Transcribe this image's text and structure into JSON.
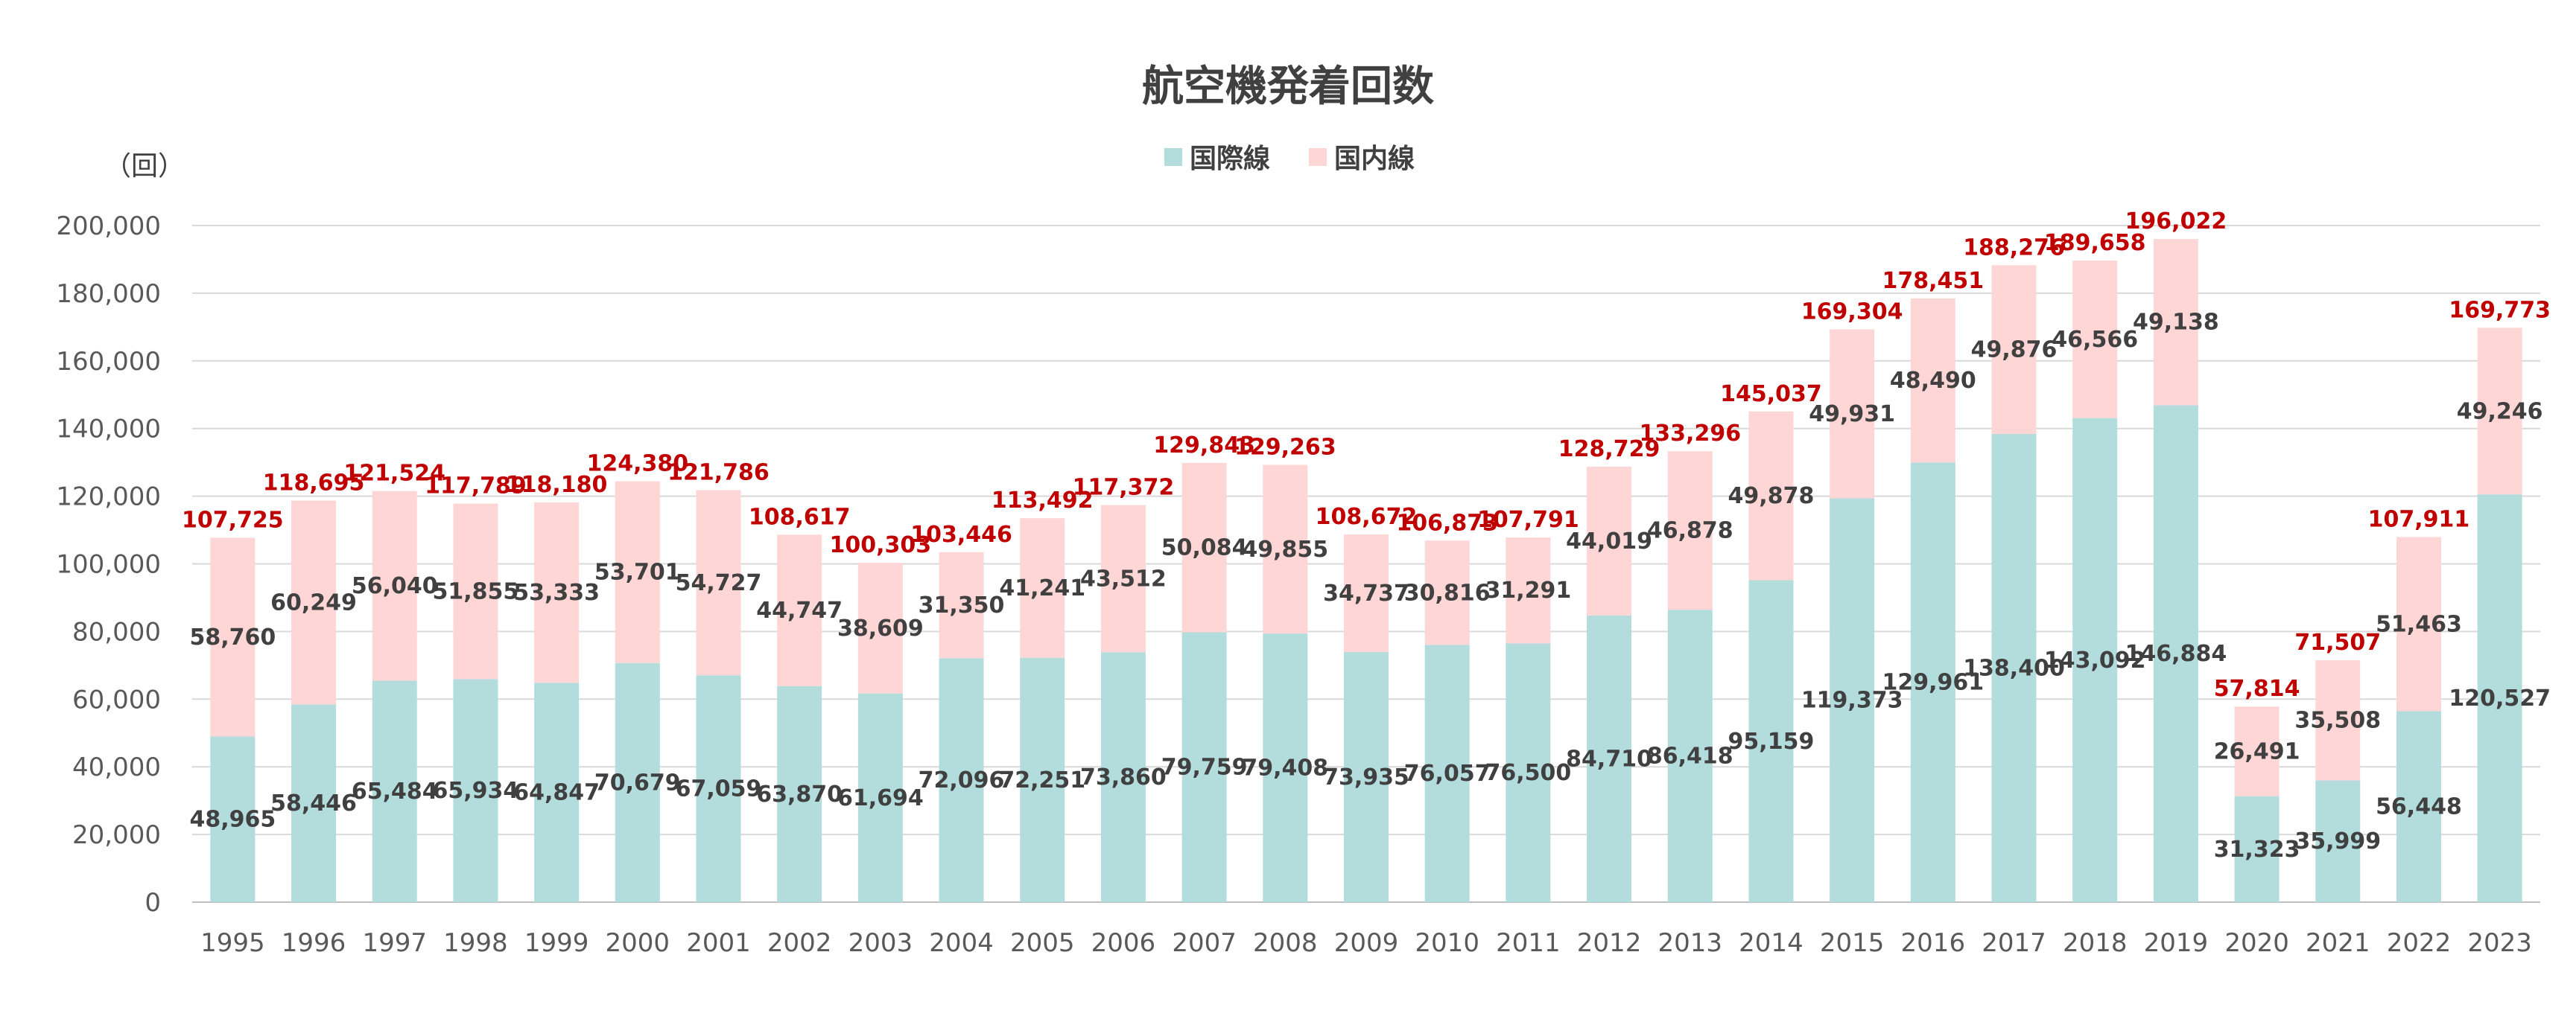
{
  "chart_data": {
    "type": "bar",
    "stacked": true,
    "title": "航空機発着回数",
    "ylabel": "（回）",
    "ylim": [
      0,
      200000
    ],
    "ytick_step": 20000,
    "grid": true,
    "legend_position": "top",
    "categories": [
      "1995",
      "1996",
      "1997",
      "1998",
      "1999",
      "2000",
      "2001",
      "2002",
      "2003",
      "2004",
      "2005",
      "2006",
      "2007",
      "2008",
      "2009",
      "2010",
      "2011",
      "2012",
      "2013",
      "2014",
      "2015",
      "2016",
      "2017",
      "2018",
      "2019",
      "2020",
      "2021",
      "2022",
      "2023"
    ],
    "series": [
      {
        "name": "国際線",
        "color": "#b3dcdc",
        "values": [
          48965,
          58446,
          65484,
          65934,
          64847,
          70679,
          67059,
          63870,
          61694,
          72096,
          72251,
          73860,
          79759,
          79408,
          73935,
          76057,
          76500,
          84710,
          86418,
          95159,
          119373,
          129961,
          138400,
          143092,
          146884,
          31323,
          35999,
          56448,
          120527
        ]
      },
      {
        "name": "国内線",
        "color": "#ffd6d6",
        "values": [
          58760,
          60249,
          56040,
          51855,
          53333,
          53701,
          54727,
          44747,
          38609,
          31350,
          41241,
          43512,
          50084,
          49855,
          34737,
          30816,
          31291,
          44019,
          46878,
          49878,
          49931,
          48490,
          49876,
          46566,
          49138,
          26491,
          35508,
          51463,
          49246
        ]
      }
    ],
    "totals": [
      107725,
      118695,
      121524,
      117789,
      118180,
      124380,
      121786,
      108617,
      100303,
      103446,
      113492,
      117372,
      129843,
      129263,
      108672,
      106873,
      107791,
      128729,
      133296,
      145037,
      169304,
      178451,
      188276,
      189658,
      196022,
      57814,
      71507,
      107911,
      169773
    ],
    "total_label_color": "#c00000"
  }
}
